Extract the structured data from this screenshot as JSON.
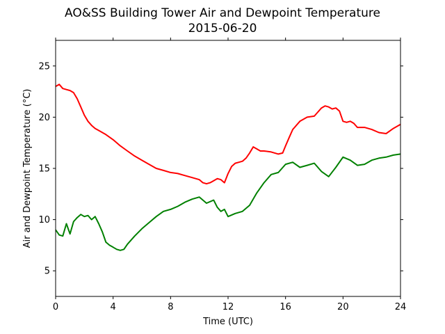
{
  "chart_data": {
    "type": "line",
    "title": "AO&SS Building Tower Air and Dewpoint Temperature",
    "subtitle": "2015-06-20",
    "xlabel": "Time (UTC)",
    "ylabel": "Air and Dewpoint Temperature (°C)",
    "xlim": [
      0,
      24
    ],
    "ylim": [
      2.5,
      27.5
    ],
    "xticks": [
      0,
      4,
      8,
      12,
      16,
      20,
      24
    ],
    "xtick_labels": [
      "0",
      "4",
      "8",
      "12",
      "16",
      "20",
      "24"
    ],
    "yticks": [
      5,
      10,
      15,
      20,
      25
    ],
    "ytick_labels": [
      "5",
      "10",
      "15",
      "20",
      "25"
    ],
    "grid": false,
    "legend": "none",
    "series": [
      {
        "color": "#ff0000",
        "x": [
          0,
          0.25,
          0.5,
          0.75,
          1.0,
          1.25,
          1.5,
          1.75,
          2.0,
          2.25,
          2.5,
          2.75,
          3.0,
          3.5,
          4.0,
          4.5,
          5.0,
          5.5,
          6.0,
          6.5,
          7.0,
          7.5,
          8.0,
          8.5,
          9.0,
          9.5,
          10.0,
          10.25,
          10.5,
          10.75,
          11.0,
          11.25,
          11.5,
          11.75,
          12.0,
          12.25,
          12.5,
          12.75,
          13.0,
          13.25,
          13.5,
          13.75,
          14.0,
          14.25,
          14.5,
          15.0,
          15.5,
          15.8,
          16.0,
          16.25,
          16.5,
          17.0,
          17.5,
          18.0,
          18.25,
          18.5,
          18.75,
          19.0,
          19.25,
          19.5,
          19.75,
          20.0,
          20.25,
          20.5,
          20.75,
          21.0,
          21.5,
          22.0,
          22.5,
          23.0,
          23.5,
          24.0
        ],
        "y": [
          23.0,
          23.2,
          22.8,
          22.7,
          22.6,
          22.4,
          21.8,
          21.0,
          20.2,
          19.6,
          19.2,
          18.9,
          18.7,
          18.3,
          17.8,
          17.2,
          16.7,
          16.2,
          15.8,
          15.4,
          15.0,
          14.8,
          14.6,
          14.5,
          14.3,
          14.1,
          13.9,
          13.6,
          13.5,
          13.6,
          13.8,
          14.0,
          13.9,
          13.6,
          14.5,
          15.2,
          15.5,
          15.6,
          15.7,
          16.0,
          16.5,
          17.1,
          16.9,
          16.7,
          16.7,
          16.6,
          16.4,
          16.5,
          17.2,
          18.0,
          18.8,
          19.6,
          20.0,
          20.1,
          20.5,
          20.9,
          21.1,
          21.0,
          20.8,
          20.9,
          20.6,
          19.6,
          19.5,
          19.6,
          19.4,
          19.0,
          19.0,
          18.8,
          18.5,
          18.4,
          18.9,
          19.3
        ]
      },
      {
        "color": "#008000",
        "x": [
          0,
          0.25,
          0.5,
          0.75,
          1.0,
          1.25,
          1.5,
          1.75,
          2.0,
          2.25,
          2.5,
          2.75,
          3.0,
          3.25,
          3.5,
          3.75,
          4.0,
          4.25,
          4.5,
          4.75,
          5.0,
          5.5,
          6.0,
          6.5,
          7.0,
          7.5,
          8.0,
          8.5,
          9.0,
          9.5,
          10.0,
          10.5,
          11.0,
          11.25,
          11.5,
          11.75,
          12.0,
          12.5,
          13.0,
          13.5,
          14.0,
          14.5,
          15.0,
          15.5,
          16.0,
          16.5,
          17.0,
          17.5,
          18.0,
          18.5,
          19.0,
          19.5,
          20.0,
          20.5,
          21.0,
          21.5,
          22.0,
          22.5,
          23.0,
          23.5,
          24.0
        ],
        "y": [
          9.0,
          8.5,
          8.4,
          9.6,
          8.6,
          9.8,
          10.2,
          10.5,
          10.3,
          10.4,
          10.0,
          10.3,
          9.6,
          8.8,
          7.8,
          7.5,
          7.3,
          7.1,
          7.0,
          7.1,
          7.6,
          8.4,
          9.1,
          9.7,
          10.3,
          10.8,
          11.0,
          11.3,
          11.7,
          12.0,
          12.2,
          11.6,
          11.9,
          11.2,
          10.8,
          11.0,
          10.3,
          10.6,
          10.8,
          11.4,
          12.6,
          13.6,
          14.4,
          14.6,
          15.4,
          15.6,
          15.1,
          15.3,
          15.5,
          14.7,
          14.2,
          15.1,
          16.1,
          15.8,
          15.3,
          15.4,
          15.8,
          16.0,
          16.1,
          16.3,
          16.4
        ]
      }
    ]
  }
}
